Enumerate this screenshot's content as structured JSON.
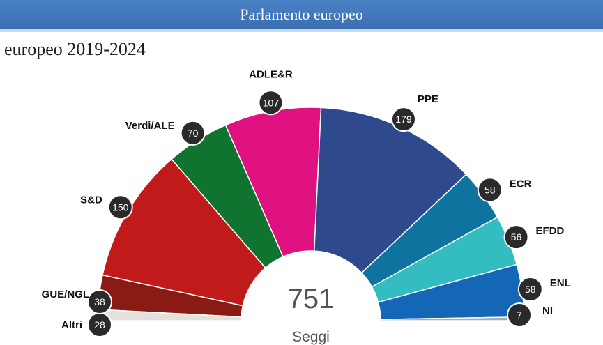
{
  "header": {
    "title": "Parlamento europeo"
  },
  "subtitle": "europeo 2019-2024",
  "chart_data": {
    "type": "pie",
    "variant": "parliament-semicircle",
    "total": {
      "value": "751",
      "label": "Seggi"
    },
    "series": [
      {
        "name": "Altri",
        "value": 28,
        "color": "#e4e1dc"
      },
      {
        "name": "GUE/NGL",
        "value": 38,
        "color": "#8a1a14"
      },
      {
        "name": "S&D",
        "value": 150,
        "color": "#c11a1a"
      },
      {
        "name": "Verdi/ALE",
        "value": 70,
        "color": "#10732f"
      },
      {
        "name": "ADLE&R",
        "value": 107,
        "color": "#e01180"
      },
      {
        "name": "PPE",
        "value": 179,
        "color": "#2e4a8c"
      },
      {
        "name": "ECR",
        "value": 58,
        "color": "#0f73a0"
      },
      {
        "name": "EFDD",
        "value": 56,
        "color": "#34bdc0"
      },
      {
        "name": "ENL",
        "value": 58,
        "color": "#1467b6"
      },
      {
        "name": "NI",
        "value": 7,
        "color": "#a8aaad"
      }
    ]
  }
}
